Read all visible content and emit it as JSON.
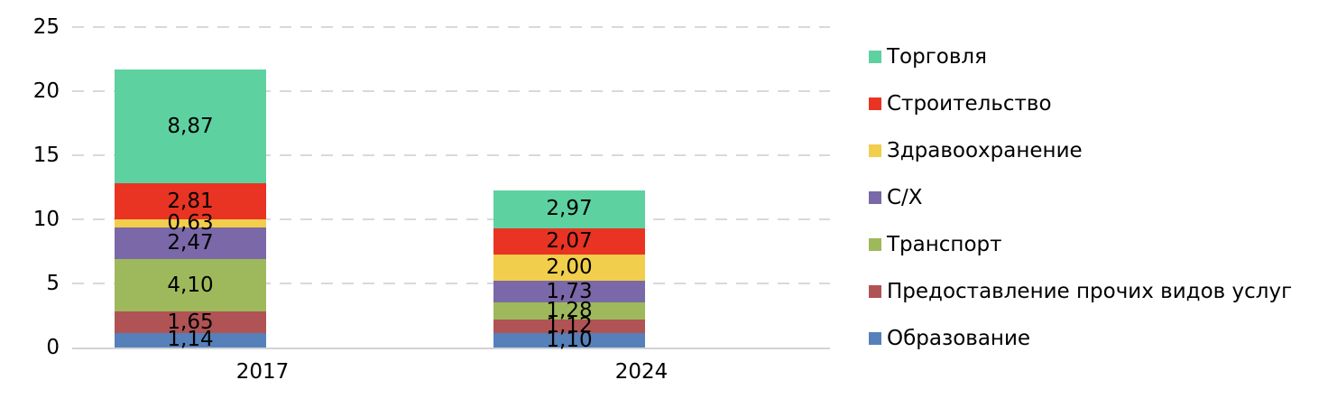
{
  "chart_data": {
    "type": "bar",
    "stacked": true,
    "categories": [
      "2017",
      "2024"
    ],
    "series": [
      {
        "name": "Торговля",
        "color": "#5ED1A1",
        "values": [
          8.87,
          2.97
        ],
        "labels": [
          "8,87",
          "2,97"
        ]
      },
      {
        "name": "Строительство",
        "color": "#E93323",
        "values": [
          2.81,
          2.07
        ],
        "labels": [
          "2,81",
          "2,07"
        ]
      },
      {
        "name": "Здравоохранение",
        "color": "#F1CE4C",
        "values": [
          0.63,
          2.0
        ],
        "labels": [
          "0,63",
          "2,00"
        ]
      },
      {
        "name": "С/Х",
        "color": "#7A68A8",
        "values": [
          2.47,
          1.73
        ],
        "labels": [
          "2,47",
          "1,73"
        ]
      },
      {
        "name": "Транспорт",
        "color": "#9EB95C",
        "values": [
          4.1,
          1.28
        ],
        "labels": [
          "4,10",
          "1,28"
        ]
      },
      {
        "name": "Предоставление прочих видов услуг",
        "color": "#B05355",
        "values": [
          1.65,
          1.12
        ],
        "labels": [
          "1,65",
          "1,12"
        ]
      },
      {
        "name": "Образование",
        "color": "#5580BA",
        "values": [
          1.14,
          1.1
        ],
        "labels": [
          "1,14",
          "1,10"
        ]
      }
    ],
    "y_axis": {
      "ticks": [
        0,
        5,
        10,
        15,
        20,
        25
      ],
      "ylim": [
        0,
        25
      ]
    },
    "x_axis": {
      "tick_labels": [
        "2017",
        "2024"
      ]
    },
    "grid": "horizontal-dashed",
    "legend_position": "right",
    "legend_entries": [
      "Торговля",
      "Строительство",
      "Здравоохранение",
      "С/Х",
      "Транспорт",
      "Предоставление прочих видов услуг",
      "Образование"
    ]
  },
  "colors": {
    "gridline": "#D9D9D9",
    "axis_line": "#D3D3D3",
    "text": "#000000",
    "background": "#FFFFFF"
  }
}
